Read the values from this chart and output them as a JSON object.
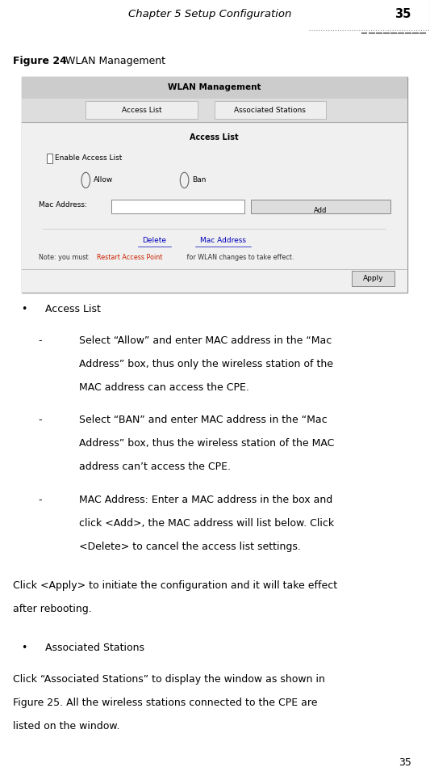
{
  "page_width": 5.33,
  "page_height": 9.65,
  "bg_color": "#ffffff",
  "header_text": "Chapter 5 Setup Configuration",
  "header_page_num": "35",
  "figure_label": "Figure 24",
  "figure_title": " WLAN Management",
  "screenshot_box": {
    "title": "WLAN Management",
    "tab1": "Access List",
    "tab2": "Associated Stations",
    "section_title": "Access List",
    "checkbox_label": "Enable Access List",
    "radio1": "Allow",
    "radio2": "Ban",
    "mac_label": "Mac Address:",
    "delete_link": "Delete",
    "mac_address_link": "Mac Address",
    "note_prefix": "Note: you must ",
    "note_red": "Restart Access Point",
    "note_suffix": " for WLAN changes to take effect.",
    "apply_btn": "Apply"
  },
  "bullet1_title": "Access List",
  "sub1_lines": [
    "Select “Allow” and enter MAC address in the “Mac",
    "Address” box, thus only the wireless station of the",
    "MAC address can access the CPE."
  ],
  "sub2_lines": [
    "Select “BAN” and enter MAC address in the “Mac",
    "Address” box, thus the wireless station of the MAC",
    "address can’t access the CPE."
  ],
  "sub3_lines": [
    "MAC Address: Enter a MAC address in the box and",
    "click <Add>, the MAC address will list below. Click",
    "<Delete> to cancel the access list settings."
  ],
  "para1_lines": [
    "Click <Apply> to initiate the configuration and it will take effect",
    "after rebooting."
  ],
  "bullet2_title": "Associated Stations",
  "para2_lines": [
    "Click “Associated Stations” to display the window as shown in",
    "Figure 25. All the wireless stations connected to the CPE are",
    "listed on the window."
  ],
  "footer_num": "35",
  "font_size_header": 9.5,
  "font_size_body": 9.0,
  "text_color": "#000000"
}
